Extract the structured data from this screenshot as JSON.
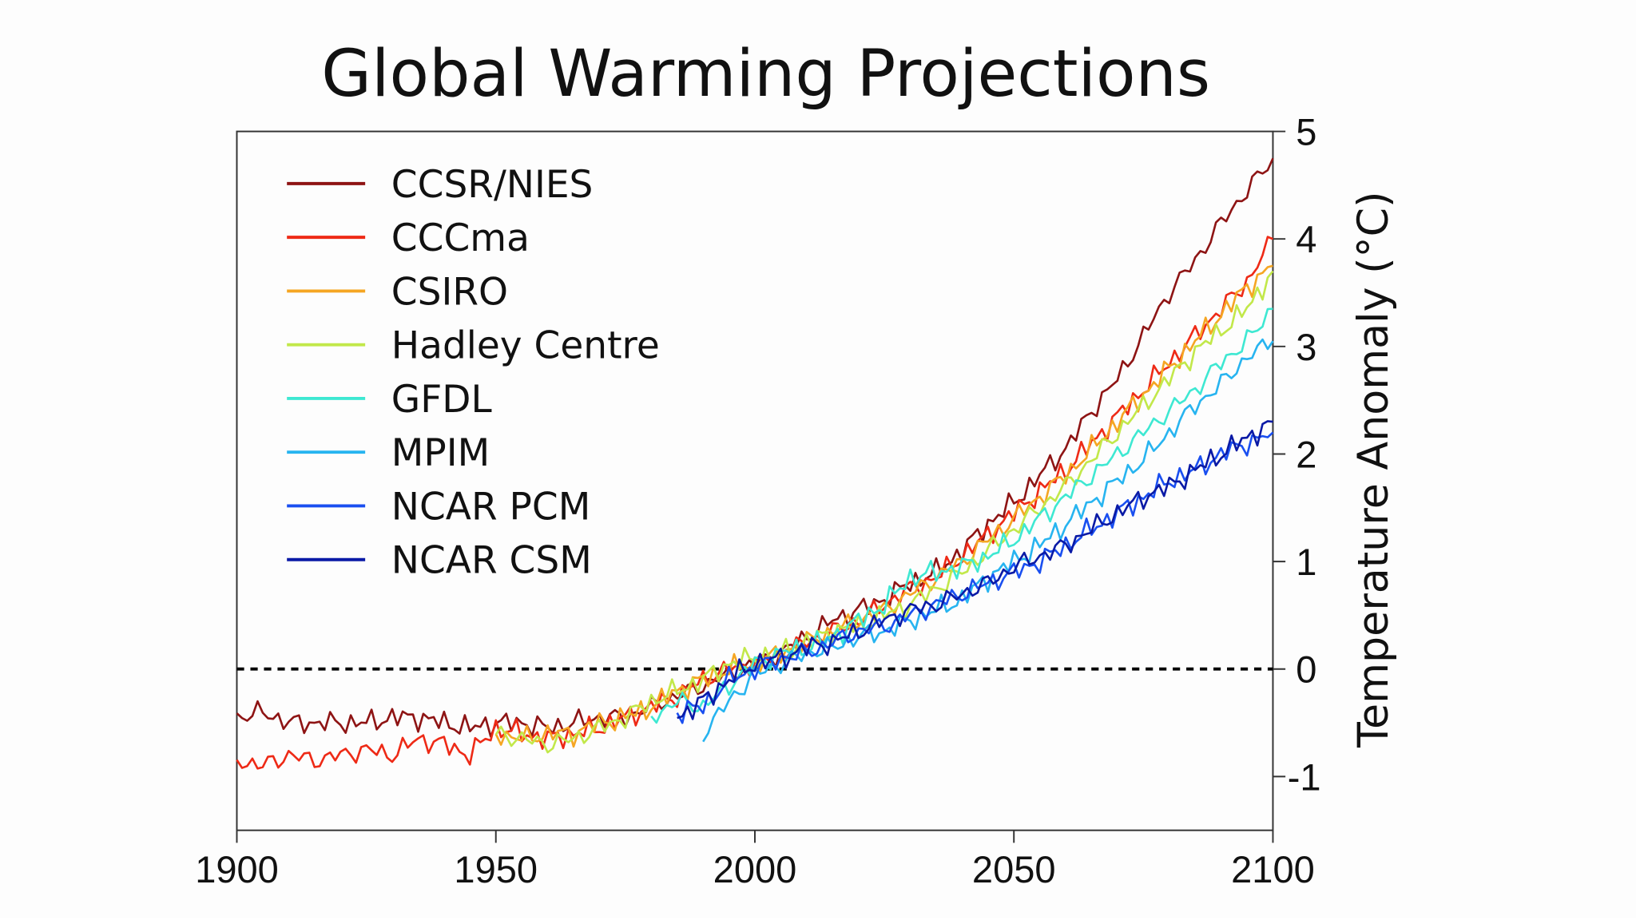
{
  "chart_data": {
    "type": "line",
    "title": "Global Warming Projections",
    "xlabel": "",
    "ylabel": "Temperature Anomaly (°C)",
    "xlim": [
      1900,
      2100
    ],
    "ylim": [
      -1.5,
      5
    ],
    "x_ticks": [
      "1900",
      "1950",
      "2000",
      "2050",
      "2100"
    ],
    "y_ticks": [
      "5",
      "4",
      "3",
      "2",
      "1",
      "0",
      "-1"
    ],
    "x_tick_values": [
      1900,
      1950,
      2000,
      2050,
      2100
    ],
    "y_tick_values": [
      5,
      4,
      3,
      2,
      1,
      0,
      -1
    ],
    "reference_line": {
      "y": 0,
      "style": "dashed",
      "color": "#000000"
    },
    "grid": false,
    "legend": {
      "placement": "top-left"
    },
    "series": [
      {
        "name": "CCSR/NIES",
        "color": "#8e1414",
        "points": [
          [
            1900,
            -0.45
          ],
          [
            1905,
            -0.4
          ],
          [
            1910,
            -0.5
          ],
          [
            1915,
            -0.5
          ],
          [
            1920,
            -0.5
          ],
          [
            1925,
            -0.5
          ],
          [
            1930,
            -0.45
          ],
          [
            1935,
            -0.45
          ],
          [
            1940,
            -0.5
          ],
          [
            1945,
            -0.55
          ],
          [
            1950,
            -0.5
          ],
          [
            1955,
            -0.5
          ],
          [
            1960,
            -0.55
          ],
          [
            1965,
            -0.5
          ],
          [
            1970,
            -0.45
          ],
          [
            1975,
            -0.45
          ],
          [
            1980,
            -0.35
          ],
          [
            1985,
            -0.25
          ],
          [
            1990,
            -0.15
          ],
          [
            1995,
            -0.05
          ],
          [
            2000,
            0.05
          ],
          [
            2005,
            0.15
          ],
          [
            2010,
            0.3
          ],
          [
            2015,
            0.45
          ],
          [
            2020,
            0.55
          ],
          [
            2025,
            0.65
          ],
          [
            2030,
            0.8
          ],
          [
            2035,
            0.9
          ],
          [
            2040,
            1.1
          ],
          [
            2045,
            1.35
          ],
          [
            2050,
            1.55
          ],
          [
            2055,
            1.8
          ],
          [
            2060,
            2.05
          ],
          [
            2065,
            2.4
          ],
          [
            2070,
            2.7
          ],
          [
            2075,
            3.1
          ],
          [
            2080,
            3.5
          ],
          [
            2085,
            3.8
          ],
          [
            2090,
            4.15
          ],
          [
            2095,
            4.45
          ],
          [
            2100,
            4.75
          ]
        ]
      },
      {
        "name": "CCCma",
        "color": "#ee2a16",
        "points": [
          [
            1900,
            -0.85
          ],
          [
            1905,
            -0.9
          ],
          [
            1910,
            -0.8
          ],
          [
            1915,
            -0.85
          ],
          [
            1920,
            -0.8
          ],
          [
            1925,
            -0.75
          ],
          [
            1930,
            -0.8
          ],
          [
            1935,
            -0.65
          ],
          [
            1940,
            -0.7
          ],
          [
            1945,
            -0.8
          ],
          [
            1950,
            -0.55
          ],
          [
            1955,
            -0.6
          ],
          [
            1960,
            -0.65
          ],
          [
            1965,
            -0.6
          ],
          [
            1970,
            -0.55
          ],
          [
            1975,
            -0.45
          ],
          [
            1980,
            -0.35
          ],
          [
            1985,
            -0.25
          ],
          [
            1990,
            -0.1
          ],
          [
            1995,
            0.0
          ],
          [
            2000,
            0.05
          ],
          [
            2005,
            0.15
          ],
          [
            2010,
            0.25
          ],
          [
            2015,
            0.35
          ],
          [
            2020,
            0.45
          ],
          [
            2025,
            0.6
          ],
          [
            2030,
            0.75
          ],
          [
            2035,
            0.85
          ],
          [
            2040,
            1.05
          ],
          [
            2045,
            1.25
          ],
          [
            2050,
            1.45
          ],
          [
            2055,
            1.65
          ],
          [
            2060,
            1.85
          ],
          [
            2065,
            2.1
          ],
          [
            2070,
            2.35
          ],
          [
            2075,
            2.6
          ],
          [
            2080,
            2.85
          ],
          [
            2085,
            3.1
          ],
          [
            2090,
            3.35
          ],
          [
            2095,
            3.6
          ],
          [
            2100,
            4.0
          ]
        ]
      },
      {
        "name": "CSIRO",
        "color": "#f5a623",
        "points": [
          [
            1950,
            -0.6
          ],
          [
            1955,
            -0.65
          ],
          [
            1960,
            -0.6
          ],
          [
            1965,
            -0.6
          ],
          [
            1970,
            -0.5
          ],
          [
            1975,
            -0.45
          ],
          [
            1980,
            -0.35
          ],
          [
            1985,
            -0.2
          ],
          [
            1990,
            -0.1
          ],
          [
            1995,
            0.0
          ],
          [
            2000,
            0.05
          ],
          [
            2005,
            0.15
          ],
          [
            2010,
            0.25
          ],
          [
            2015,
            0.35
          ],
          [
            2020,
            0.45
          ],
          [
            2025,
            0.55
          ],
          [
            2030,
            0.7
          ],
          [
            2035,
            0.85
          ],
          [
            2040,
            1.0
          ],
          [
            2045,
            1.2
          ],
          [
            2050,
            1.4
          ],
          [
            2055,
            1.6
          ],
          [
            2060,
            1.8
          ],
          [
            2065,
            2.05
          ],
          [
            2070,
            2.3
          ],
          [
            2075,
            2.55
          ],
          [
            2080,
            2.8
          ],
          [
            2085,
            3.05
          ],
          [
            2090,
            3.3
          ],
          [
            2095,
            3.55
          ],
          [
            2100,
            3.75
          ]
        ]
      },
      {
        "name": "Hadley Centre",
        "color": "#c2e84a",
        "points": [
          [
            1950,
            -0.6
          ],
          [
            1955,
            -0.65
          ],
          [
            1960,
            -0.7
          ],
          [
            1965,
            -0.65
          ],
          [
            1970,
            -0.55
          ],
          [
            1975,
            -0.45
          ],
          [
            1980,
            -0.3
          ],
          [
            1985,
            -0.2
          ],
          [
            1990,
            -0.1
          ],
          [
            1995,
            0.05
          ],
          [
            2000,
            0.1
          ],
          [
            2005,
            0.15
          ],
          [
            2010,
            0.25
          ],
          [
            2015,
            0.35
          ],
          [
            2020,
            0.4
          ],
          [
            2025,
            0.5
          ],
          [
            2030,
            0.6
          ],
          [
            2035,
            0.75
          ],
          [
            2040,
            0.9
          ],
          [
            2045,
            1.1
          ],
          [
            2050,
            1.3
          ],
          [
            2055,
            1.5
          ],
          [
            2060,
            1.7
          ],
          [
            2065,
            1.95
          ],
          [
            2070,
            2.2
          ],
          [
            2075,
            2.45
          ],
          [
            2080,
            2.7
          ],
          [
            2085,
            2.95
          ],
          [
            2090,
            3.15
          ],
          [
            2095,
            3.35
          ],
          [
            2100,
            3.7
          ]
        ]
      },
      {
        "name": "GFDL",
        "color": "#3ee8d2",
        "points": [
          [
            1980,
            -0.45
          ],
          [
            1985,
            -0.3
          ],
          [
            1990,
            -0.35
          ],
          [
            1995,
            -0.15
          ],
          [
            2000,
            0.05
          ],
          [
            2005,
            0.15
          ],
          [
            2010,
            0.2
          ],
          [
            2015,
            0.3
          ],
          [
            2020,
            0.45
          ],
          [
            2025,
            0.6
          ],
          [
            2030,
            0.85
          ],
          [
            2035,
            0.9
          ],
          [
            2040,
            0.95
          ],
          [
            2045,
            1.05
          ],
          [
            2050,
            1.2
          ],
          [
            2055,
            1.4
          ],
          [
            2060,
            1.6
          ],
          [
            2065,
            1.8
          ],
          [
            2070,
            2.0
          ],
          [
            2075,
            2.2
          ],
          [
            2080,
            2.4
          ],
          [
            2085,
            2.6
          ],
          [
            2090,
            2.85
          ],
          [
            2095,
            3.05
          ],
          [
            2100,
            3.35
          ]
        ]
      },
      {
        "name": "MPIM",
        "color": "#27b4f0",
        "points": [
          [
            1990,
            -0.6
          ],
          [
            1995,
            -0.3
          ],
          [
            2000,
            -0.05
          ],
          [
            2005,
            0.05
          ],
          [
            2010,
            0.15
          ],
          [
            2015,
            0.2
          ],
          [
            2020,
            0.3
          ],
          [
            2025,
            0.35
          ],
          [
            2030,
            0.45
          ],
          [
            2035,
            0.55
          ],
          [
            2040,
            0.65
          ],
          [
            2045,
            0.85
          ],
          [
            2050,
            1.0
          ],
          [
            2055,
            1.15
          ],
          [
            2060,
            1.35
          ],
          [
            2065,
            1.55
          ],
          [
            2070,
            1.75
          ],
          [
            2075,
            1.95
          ],
          [
            2080,
            2.2
          ],
          [
            2085,
            2.45
          ],
          [
            2090,
            2.65
          ],
          [
            2095,
            2.9
          ],
          [
            2100,
            3.05
          ]
        ]
      },
      {
        "name": "NCAR PCM",
        "color": "#1a4ff0",
        "points": [
          [
            1985,
            -0.4
          ],
          [
            1990,
            -0.35
          ],
          [
            1995,
            -0.1
          ],
          [
            2000,
            0.0
          ],
          [
            2005,
            0.1
          ],
          [
            2010,
            0.15
          ],
          [
            2015,
            0.25
          ],
          [
            2020,
            0.35
          ],
          [
            2025,
            0.4
          ],
          [
            2030,
            0.5
          ],
          [
            2035,
            0.6
          ],
          [
            2040,
            0.7
          ],
          [
            2045,
            0.8
          ],
          [
            2050,
            0.9
          ],
          [
            2055,
            1.0
          ],
          [
            2060,
            1.15
          ],
          [
            2065,
            1.3
          ],
          [
            2070,
            1.45
          ],
          [
            2075,
            1.6
          ],
          [
            2080,
            1.75
          ],
          [
            2085,
            1.85
          ],
          [
            2090,
            2.0
          ],
          [
            2095,
            2.1
          ],
          [
            2100,
            2.2
          ]
        ]
      },
      {
        "name": "NCAR CSM",
        "color": "#0a1aa6",
        "points": [
          [
            1985,
            -0.45
          ],
          [
            1990,
            -0.3
          ],
          [
            1995,
            -0.1
          ],
          [
            2000,
            0.05
          ],
          [
            2005,
            0.1
          ],
          [
            2010,
            0.2
          ],
          [
            2015,
            0.25
          ],
          [
            2020,
            0.35
          ],
          [
            2025,
            0.45
          ],
          [
            2030,
            0.55
          ],
          [
            2035,
            0.6
          ],
          [
            2040,
            0.7
          ],
          [
            2045,
            0.8
          ],
          [
            2050,
            0.95
          ],
          [
            2055,
            1.05
          ],
          [
            2060,
            1.15
          ],
          [
            2065,
            1.3
          ],
          [
            2070,
            1.45
          ],
          [
            2075,
            1.6
          ],
          [
            2080,
            1.7
          ],
          [
            2085,
            1.85
          ],
          [
            2090,
            2.0
          ],
          [
            2095,
            2.15
          ],
          [
            2100,
            2.3
          ]
        ]
      }
    ]
  }
}
